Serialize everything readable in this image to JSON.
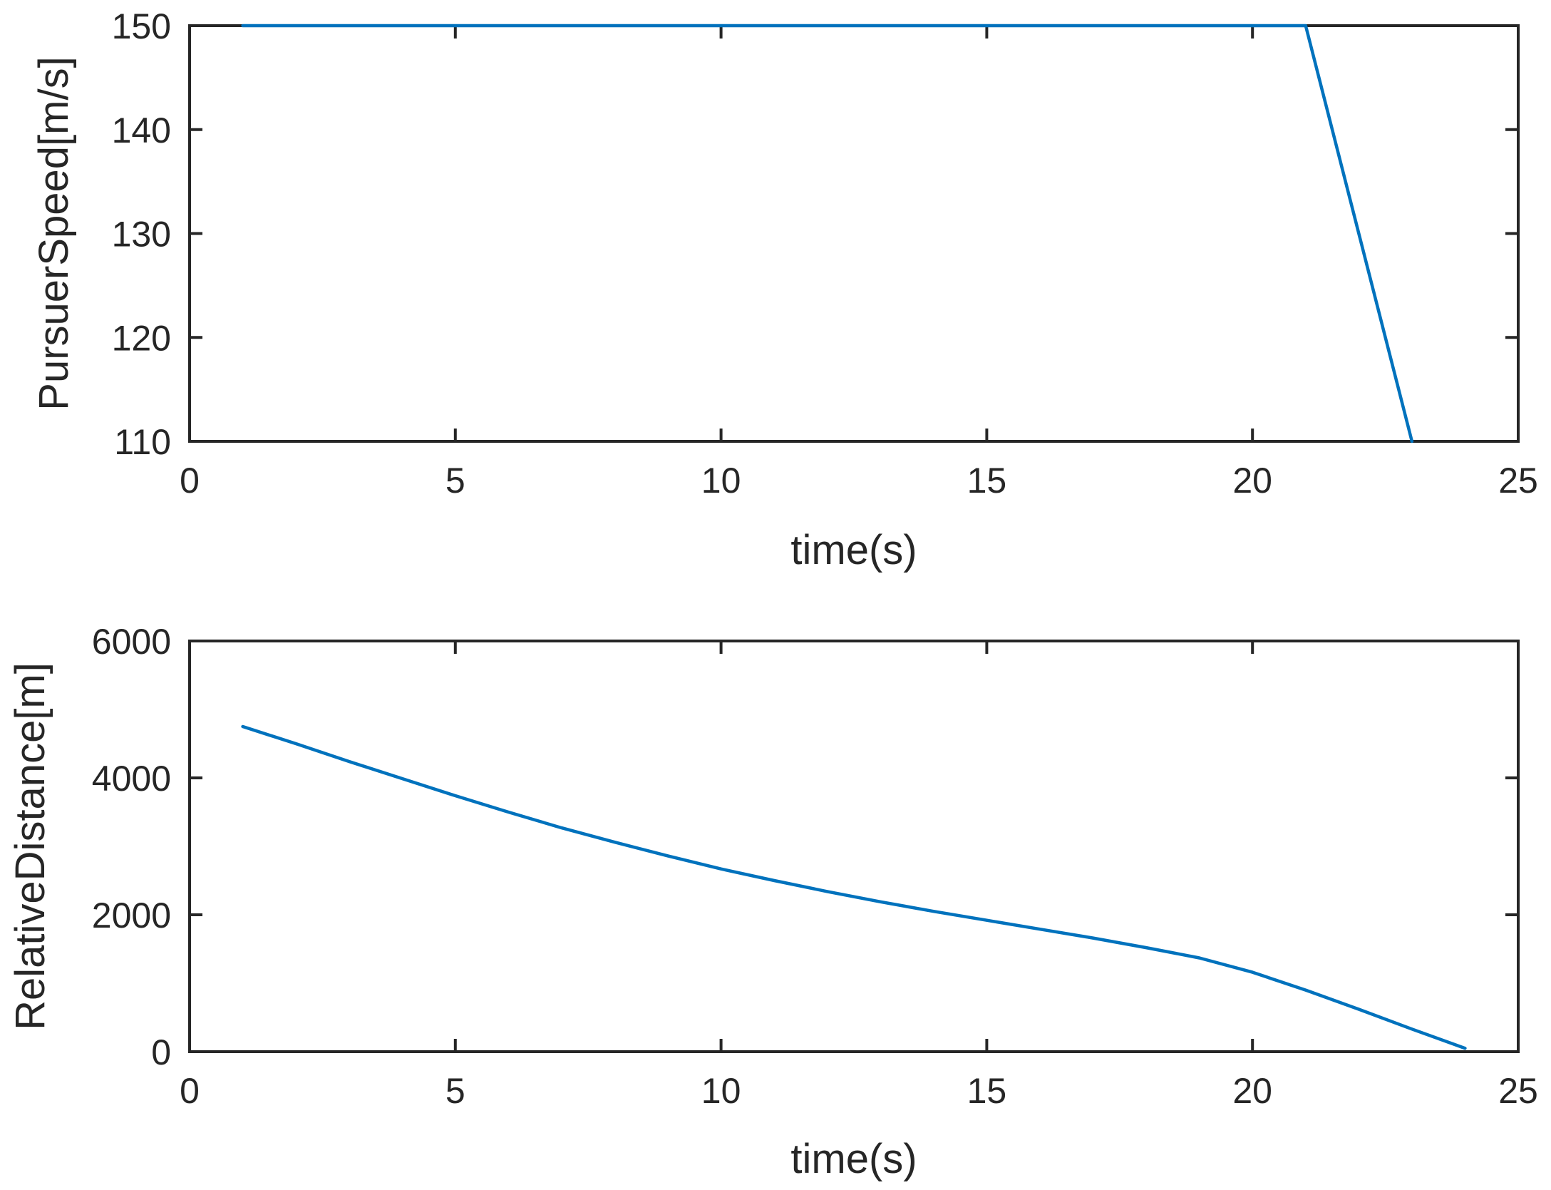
{
  "colors": {
    "series": "#0072BD",
    "axes": "#262626",
    "background": "#ffffff"
  },
  "chart_data": [
    {
      "type": "line",
      "xlabel": "time(s)",
      "ylabel": "PursuerSpeed[m/s]",
      "xlim": [
        0,
        25
      ],
      "ylim": [
        110,
        150
      ],
      "xticks": [
        0,
        5,
        10,
        15,
        20,
        25
      ],
      "yticks": [
        110,
        120,
        130,
        140,
        150
      ],
      "grid": false,
      "series": [
        {
          "x": [
            1,
            21,
            23
          ],
          "y": [
            150,
            150,
            110
          ]
        }
      ]
    },
    {
      "type": "line",
      "xlabel": "time(s)",
      "ylabel": "RelativeDistance[m]",
      "xlim": [
        0,
        25
      ],
      "ylim": [
        0,
        6000
      ],
      "xticks": [
        0,
        5,
        10,
        15,
        20,
        25
      ],
      "yticks": [
        0,
        2000,
        4000,
        6000
      ],
      "grid": false,
      "series": [
        {
          "x": [
            1,
            2,
            3,
            4,
            5,
            6,
            7,
            8,
            9,
            10,
            11,
            12,
            13,
            14,
            15,
            16,
            17,
            18,
            19,
            20,
            21,
            22,
            23,
            24
          ],
          "y": [
            4750,
            4500,
            4240,
            3990,
            3740,
            3500,
            3270,
            3060,
            2860,
            2670,
            2500,
            2340,
            2190,
            2050,
            1920,
            1790,
            1660,
            1520,
            1370,
            1160,
            900,
            620,
            330,
            50
          ]
        }
      ]
    }
  ]
}
